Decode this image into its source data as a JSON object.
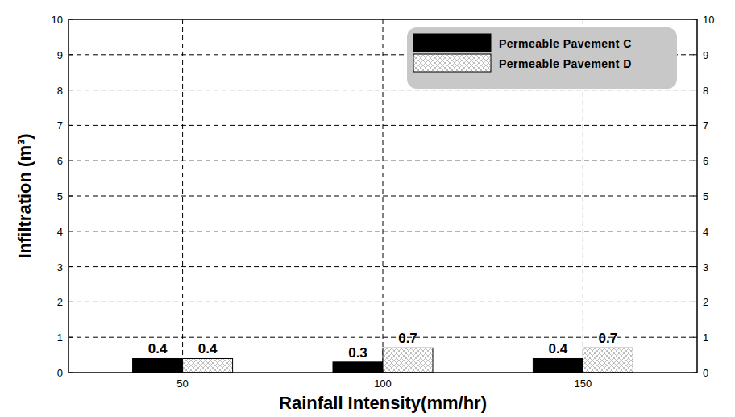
{
  "chart_data": {
    "type": "bar",
    "x_label": "Rainfall Intensity(mm/hr)",
    "y_label": "Infiltration (m³)",
    "categories": [
      "50",
      "100",
      "150"
    ],
    "series": [
      {
        "name": "Permeable Pavement C",
        "color": "#000000",
        "values": [
          0.4,
          0.3,
          0.4
        ]
      },
      {
        "name": "Permeable Pavement D",
        "color": "#bdbdbd",
        "values": [
          0.4,
          0.7,
          0.7
        ]
      }
    ],
    "ylim": [
      0,
      10
    ],
    "yticks": [
      0,
      1,
      2,
      3,
      4,
      5,
      6,
      7,
      8,
      9,
      10
    ],
    "y2lim": [
      0,
      10
    ],
    "y2ticks": [
      0,
      1,
      2,
      3,
      4,
      5,
      6,
      7,
      8,
      9,
      10
    ],
    "grid": true,
    "legend": "upper right",
    "data_labels": true
  }
}
